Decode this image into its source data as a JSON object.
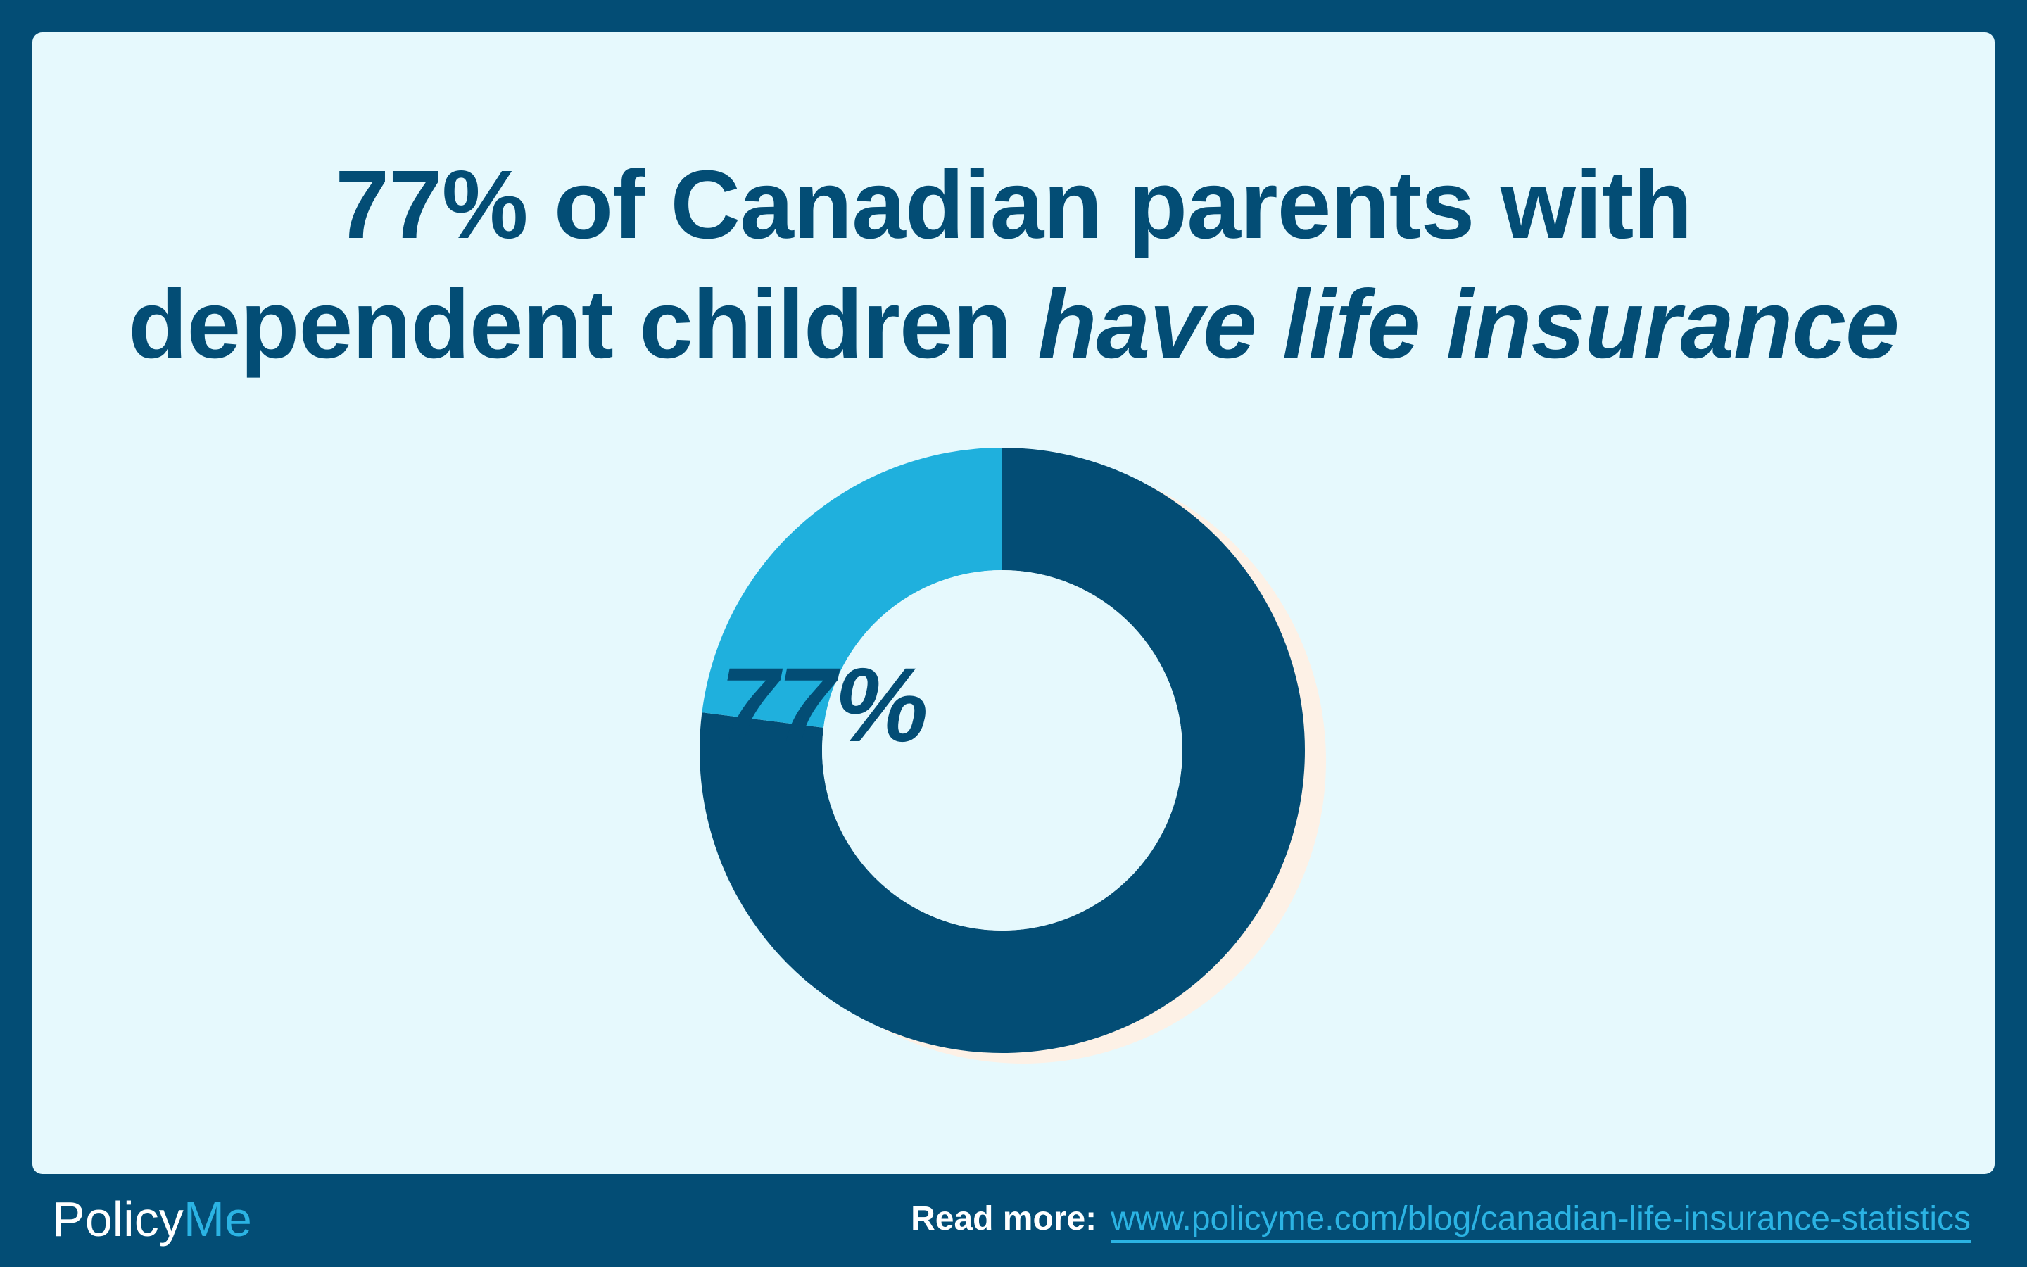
{
  "title": {
    "line1": "77% of Canadian parents with",
    "line2_normal": "dependent children ",
    "line2_emphasis": "have life insurance"
  },
  "chart_data": {
    "type": "pie",
    "style": "donut",
    "slices": [
      {
        "label": "",
        "value": 77,
        "color": "#034d75"
      },
      {
        "label": "",
        "value": 23,
        "color": "#1fb0dd"
      }
    ],
    "center_label": "77%",
    "shadow_color": "#fdf1e6"
  },
  "footer": {
    "logo_policy": "Policy",
    "logo_me": "Me",
    "read_more_label": "Read more:",
    "read_more_link": "www.policyme.com/blog/canadian-life-insurance-statistics"
  },
  "colors": {
    "background": "#034d75",
    "card": "#e6f9fd",
    "accent": "#2bb3e3",
    "text": "#034d75"
  }
}
